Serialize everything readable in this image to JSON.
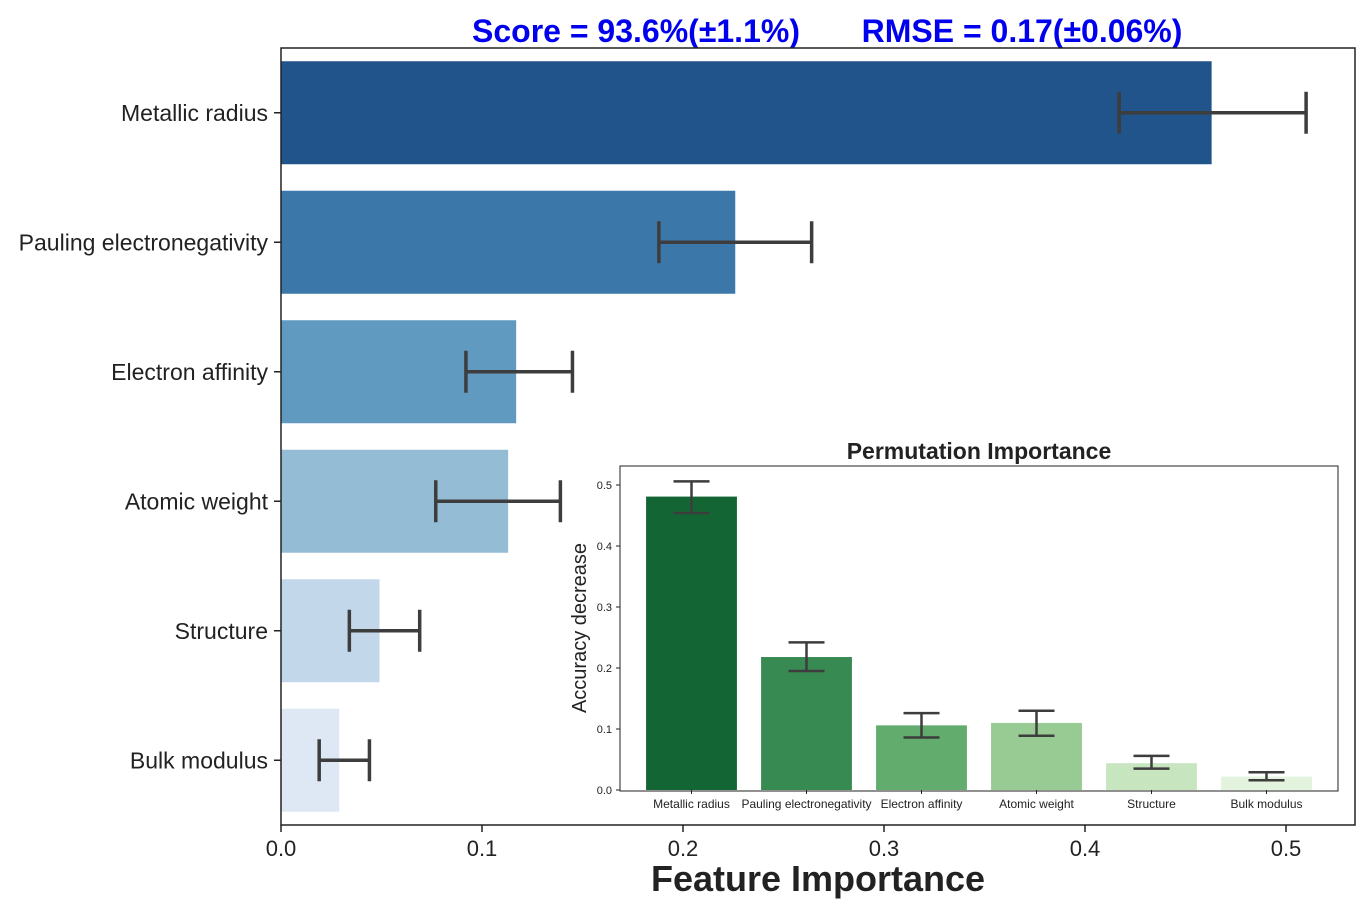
{
  "header": {
    "score": "Score = 93.6%(±1.1%)",
    "rmse": "RMSE = 0.17(±0.06%)"
  },
  "chart_data": [
    {
      "type": "bar",
      "orientation": "horizontal",
      "title": "",
      "xlabel": "Feature Importance",
      "ylabel": "",
      "xlim": [
        0.0,
        0.535
      ],
      "xticks": [
        "0.0",
        "0.1",
        "0.2",
        "0.3",
        "0.4",
        "0.5"
      ],
      "categories": [
        "Metallic radius",
        "Pauling electronegativity",
        "Electron affinity",
        "Atomic weight",
        "Structure",
        "Bulk modulus"
      ],
      "values": [
        0.463,
        0.226,
        0.117,
        0.113,
        0.049,
        0.029
      ],
      "error_low": [
        0.417,
        0.188,
        0.092,
        0.077,
        0.034,
        0.019
      ],
      "error_high": [
        0.51,
        0.264,
        0.145,
        0.139,
        0.069,
        0.044
      ],
      "colors": [
        "#22548c",
        "#3b78a9",
        "#619ac0",
        "#95bcd5",
        "#c3d7ea",
        "#dee8f4"
      ],
      "grid": false
    },
    {
      "type": "bar",
      "title": "Permutation Importance",
      "xlabel": "",
      "ylabel": "Accuracy decrease",
      "ylim": [
        0.0,
        0.53
      ],
      "yticks": [
        "0.0",
        "0.1",
        "0.2",
        "0.3",
        "0.4",
        "0.5"
      ],
      "categories": [
        "Metallic radius",
        "Pauling electronegativity",
        "Electron affinity",
        "Atomic weight",
        "Structure",
        "Bulk modulus"
      ],
      "values": [
        0.481,
        0.218,
        0.106,
        0.11,
        0.044,
        0.022
      ],
      "error_low": [
        0.454,
        0.195,
        0.086,
        0.089,
        0.035,
        0.016
      ],
      "error_high": [
        0.506,
        0.242,
        0.126,
        0.13,
        0.056,
        0.029
      ],
      "colors": [
        "#136633",
        "#388a53",
        "#62ac6e",
        "#98ca93",
        "#c7e6c0",
        "#e3f3de"
      ],
      "grid": false
    }
  ]
}
